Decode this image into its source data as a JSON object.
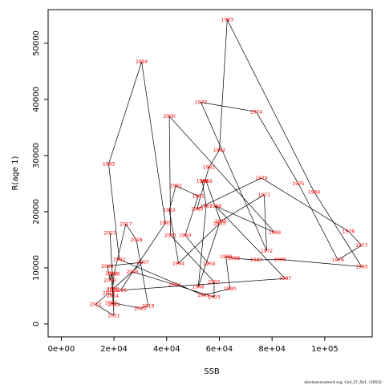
{
  "chart_data": {
    "type": "line",
    "xlabel": "SSB",
    "ylabel": "R(age 1)",
    "xlim": [
      -5000,
      118000
    ],
    "ylim": [
      -2300,
      56000
    ],
    "x_ticks": [
      0,
      20000,
      40000,
      60000,
      80000,
      100000
    ],
    "x_tick_labels": [
      "0e+00",
      "2e+04",
      "4e+04",
      "6e+04",
      "8e+04",
      "1e+05"
    ],
    "y_ticks": [
      0,
      10000,
      20000,
      30000,
      40000,
      50000
    ],
    "y_tick_labels": [
      "0",
      "10000",
      "20000",
      "30000",
      "40000",
      "50000"
    ],
    "credit": "stockassessment.org, Cod_27_5b1, r16552",
    "line_color": "#000000",
    "label_color": "#ff0000",
    "points": [
      {
        "year": "1959",
        "x": 56000,
        "y": 10700
      },
      {
        "year": "1960",
        "x": 47000,
        "y": 15800
      },
      {
        "year": "1961",
        "x": 52000,
        "y": 22800
      },
      {
        "year": "1962",
        "x": 43500,
        "y": 24600
      },
      {
        "year": "1963",
        "x": 41000,
        "y": 20300
      },
      {
        "year": "1964",
        "x": 44500,
        "y": 10800
      },
      {
        "year": "1965",
        "x": 60000,
        "y": 17900
      },
      {
        "year": "1966",
        "x": 52000,
        "y": 6600
      },
      {
        "year": "1967",
        "x": 55000,
        "y": 21000
      },
      {
        "year": "1968",
        "x": 53500,
        "y": 25500
      },
      {
        "year": "1969",
        "x": 55000,
        "y": 25400
      },
      {
        "year": "1970",
        "x": 60500,
        "y": 18300
      },
      {
        "year": "1971",
        "x": 77000,
        "y": 23000
      },
      {
        "year": "1972",
        "x": 78000,
        "y": 13000
      },
      {
        "year": "1973",
        "x": 53000,
        "y": 39500
      },
      {
        "year": "1974",
        "x": 74000,
        "y": 37800
      },
      {
        "year": "1975",
        "x": 90000,
        "y": 25000
      },
      {
        "year": "1976",
        "x": 105000,
        "y": 11400
      },
      {
        "year": "1977",
        "x": 114000,
        "y": 14000
      },
      {
        "year": "1978",
        "x": 109000,
        "y": 16500
      },
      {
        "year": "1979",
        "x": 76000,
        "y": 26000
      },
      {
        "year": "1980",
        "x": 51500,
        "y": 20500
      },
      {
        "year": "1981",
        "x": 56000,
        "y": 27900
      },
      {
        "year": "1982",
        "x": 60000,
        "y": 31000
      },
      {
        "year": "1983",
        "x": 63000,
        "y": 54200
      },
      {
        "year": "1984",
        "x": 96000,
        "y": 23500
      },
      {
        "year": "1985",
        "x": 114000,
        "y": 10200
      },
      {
        "year": "1986",
        "x": 83000,
        "y": 11500
      },
      {
        "year": "1987",
        "x": 74000,
        "y": 11400
      },
      {
        "year": "1988",
        "x": 65500,
        "y": 11700
      },
      {
        "year": "1989",
        "x": 62500,
        "y": 12000
      },
      {
        "year": "1990",
        "x": 64000,
        "y": 6300
      },
      {
        "year": "1991",
        "x": 54000,
        "y": 5100
      },
      {
        "year": "1992",
        "x": 22000,
        "y": 11500
      },
      {
        "year": "1993",
        "x": 18000,
        "y": 28500
      },
      {
        "year": "1994",
        "x": 30500,
        "y": 46700
      },
      {
        "year": "1995",
        "x": 39500,
        "y": 18000
      },
      {
        "year": "1996",
        "x": 22500,
        "y": 6000
      },
      {
        "year": "1997",
        "x": 85000,
        "y": 8100
      },
      {
        "year": "1998",
        "x": 58500,
        "y": 21000
      },
      {
        "year": "1999",
        "x": 81000,
        "y": 16300
      },
      {
        "year": "2000",
        "x": 41000,
        "y": 37000
      },
      {
        "year": "2001",
        "x": 41500,
        "y": 15800
      },
      {
        "year": "2002",
        "x": 58000,
        "y": 7500
      },
      {
        "year": "2003",
        "x": 58000,
        "y": 4800
      },
      {
        "year": "2004",
        "x": 43000,
        "y": 7000
      },
      {
        "year": "2005",
        "x": 27000,
        "y": 9300
      },
      {
        "year": "2006",
        "x": 19500,
        "y": 6200
      },
      {
        "year": "2007",
        "x": 31000,
        "y": 11000
      },
      {
        "year": "2008",
        "x": 17500,
        "y": 10300
      },
      {
        "year": "2009",
        "x": 18500,
        "y": 7800
      },
      {
        "year": "2010",
        "x": 19000,
        "y": 9000
      },
      {
        "year": "2011",
        "x": 20000,
        "y": 1500
      },
      {
        "year": "2012",
        "x": 13000,
        "y": 3500
      },
      {
        "year": "2013",
        "x": 18000,
        "y": 5500
      },
      {
        "year": "2014",
        "x": 19500,
        "y": 5000
      },
      {
        "year": "2015",
        "x": 19500,
        "y": 6000
      },
      {
        "year": "2016",
        "x": 20000,
        "y": 8900
      },
      {
        "year": "2017",
        "x": 24500,
        "y": 17800
      },
      {
        "year": "2018",
        "x": 28500,
        "y": 15000
      },
      {
        "year": "2019",
        "x": 33000,
        "y": 3200
      },
      {
        "year": "2020",
        "x": 30000,
        "y": 2800
      },
      {
        "year": "2021",
        "x": 19000,
        "y": 3800
      },
      {
        "year": "2022",
        "x": 20000,
        "y": 3400
      },
      {
        "year": "2023",
        "x": 18500,
        "y": 16200
      }
    ]
  }
}
